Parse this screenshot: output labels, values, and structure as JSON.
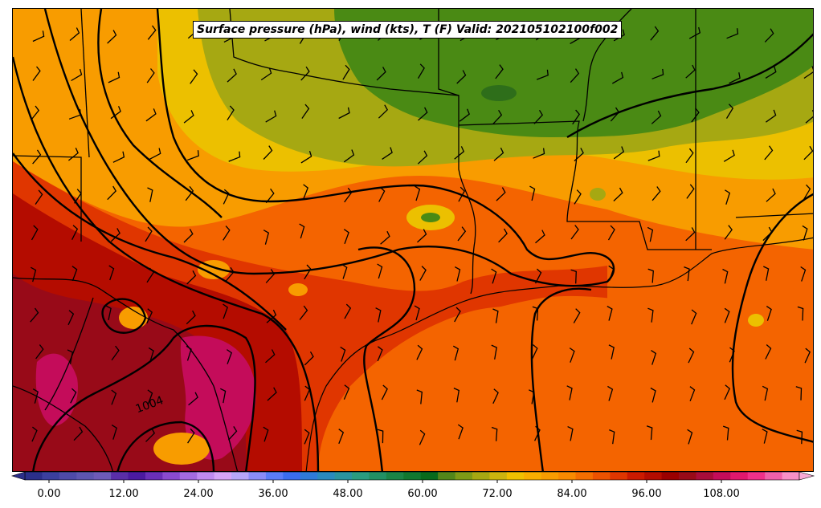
{
  "title": "Surface pressure (hPa), wind (kts), T (F) Valid: 202105102100f002",
  "isobar_label": "1004",
  "colorbar": {
    "ticks": [
      "0.00",
      "12.00",
      "24.00",
      "36.00",
      "48.00",
      "60.00",
      "72.00",
      "84.00",
      "96.00",
      "108.00"
    ],
    "extend": "both",
    "colors": [
      "#2b2f8a",
      "#3b3f9e",
      "#4e4aa8",
      "#5d55b0",
      "#6d5ab8",
      "#5a2ea8",
      "#4b1aa0",
      "#6a2fb8",
      "#8a4ad0",
      "#a46ae0",
      "#c08af0",
      "#d6a4f8",
      "#b7a6f8",
      "#8a8cf8",
      "#5a7cf8",
      "#3a6cf0",
      "#2f7ad8",
      "#2a8abe",
      "#2a94a0",
      "#2a9c80",
      "#229064",
      "#1a8446",
      "#107830",
      "#086a1c",
      "#52861a",
      "#7e9a16",
      "#a6a812",
      "#ccb40e",
      "#f0c000",
      "#f8ae00",
      "#f89c00",
      "#f88a00",
      "#f46e00",
      "#ec5200",
      "#e03600",
      "#cc1a00",
      "#b40c00",
      "#9a0000",
      "#980a18",
      "#a80c3a",
      "#c40c5a",
      "#e0186e",
      "#f0308a",
      "#f060aa",
      "#f890c8"
    ]
  },
  "map_colors": {
    "green_dark": "#2e6e1a",
    "green": "#4a8a14",
    "olive": "#a6a812",
    "yellow": "#ecc000",
    "orange": "#f89c00",
    "orange_red": "#f46400",
    "red": "#e03600",
    "deep_red": "#b40c00",
    "maroon": "#980a18",
    "magenta": "#c40c5a"
  }
}
